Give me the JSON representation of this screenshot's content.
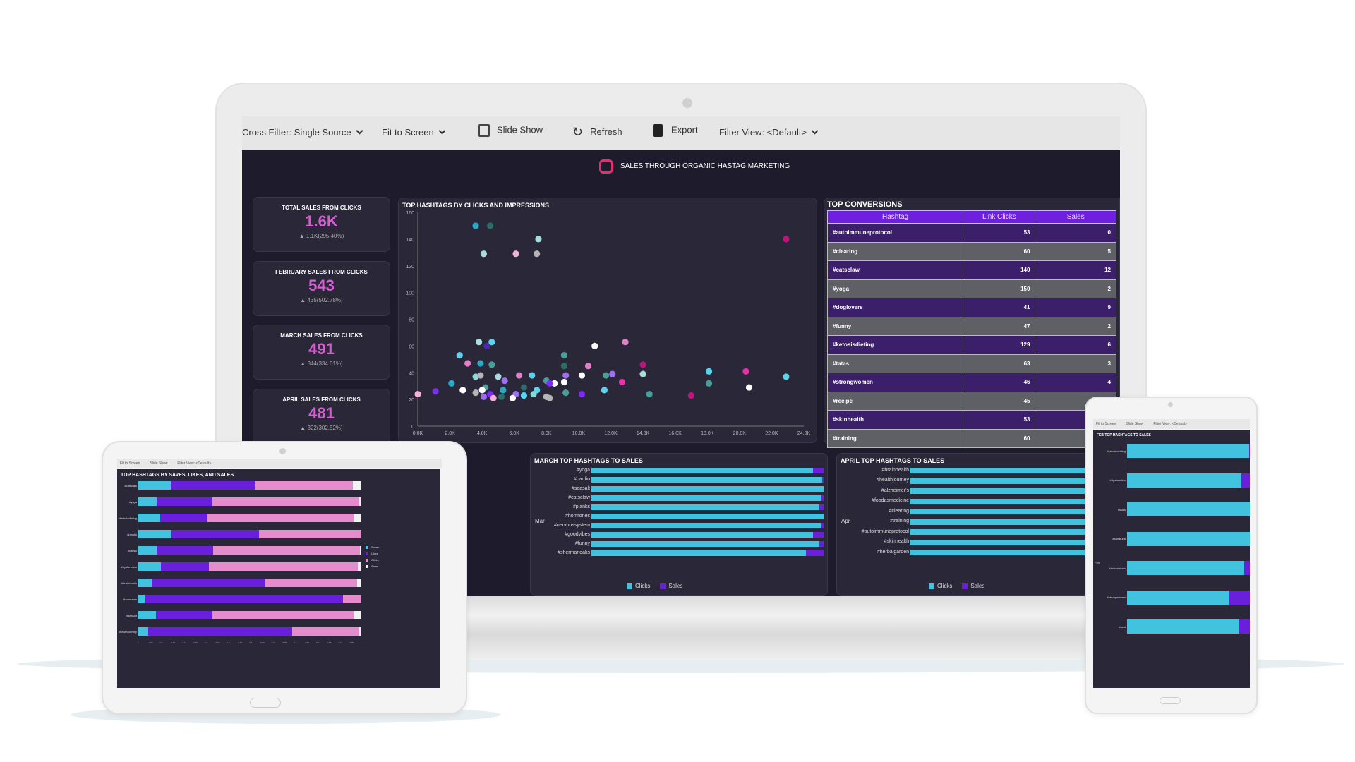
{
  "toolbar": {
    "cross_filter": "Cross Filter: Single Source",
    "fit": "Fit to Screen",
    "slideshow": "Slide Show",
    "refresh": "Refresh",
    "export": "Export",
    "filter_view": "Filter View: <Default>"
  },
  "dashboard": {
    "title": "SALES THROUGH ORGANIC HASTAG MARKETING"
  },
  "kpis": [
    {
      "title": "TOTAL SALES FROM CLICKS",
      "value": "1.6K",
      "delta": "1.1K(295.40%)"
    },
    {
      "title": "FEBRUARY SALES FROM CLICKS",
      "value": "543",
      "delta": "435(502.78%)"
    },
    {
      "title": "MARCH SALES FROM CLICKS",
      "value": "491",
      "delta": "344(334.01%)"
    },
    {
      "title": "APRIL SALES FROM CLICKS",
      "value": "481",
      "delta": "322(302.52%)"
    }
  ],
  "colors": {
    "clicks": "#41c3e0",
    "sales": "#6a1fdc",
    "saves": "#41c3e0",
    "likes": "#6a1fdc",
    "clicks_pink": "#e48ccc",
    "sales_white": "#f2f2f2",
    "kpi_value": "#d45fcf"
  },
  "chart_data": [
    {
      "type": "scatter",
      "title": "TOP HASHTAGS BY CLICKS AND IMPRESSIONS",
      "xlim": [
        0,
        24000
      ],
      "ylim": [
        0,
        160
      ],
      "xticks": [
        "0.0K",
        "2.0K",
        "4.0K",
        "6.0K",
        "8.0K",
        "10.0K",
        "12.0K",
        "14.0K",
        "16.0K",
        "18.0K",
        "20.0K",
        "22.0K",
        "24.0K"
      ],
      "yticks": [
        "0",
        "20",
        "40",
        "60",
        "80",
        "100",
        "120",
        "140",
        "160"
      ],
      "palette": [
        "#2aa8c4",
        "#2e6b6b",
        "#a8dede",
        "#c0137e",
        "#f3b1d9",
        "#b5b5b5",
        "#4a2ab0",
        "#ffffff",
        "#5ad4ee",
        "#4a9e9a",
        "#e27fc6",
        "#9b6ff0",
        "#7c2cf0",
        "#e034a5",
        "#88d7dc"
      ],
      "points": [
        [
          3600,
          150,
          0
        ],
        [
          4500,
          150,
          1
        ],
        [
          7500,
          140,
          2
        ],
        [
          22900,
          140,
          3
        ],
        [
          4100,
          129,
          2
        ],
        [
          6100,
          129,
          4
        ],
        [
          7400,
          129,
          5
        ],
        [
          3800,
          63,
          2
        ],
        [
          4600,
          63,
          8
        ],
        [
          4300,
          60,
          6
        ],
        [
          11000,
          60,
          7
        ],
        [
          12900,
          63,
          10
        ],
        [
          2600,
          53,
          8
        ],
        [
          9100,
          53,
          9
        ],
        [
          3100,
          47,
          10
        ],
        [
          3900,
          47,
          0
        ],
        [
          4600,
          46,
          9
        ],
        [
          9100,
          45,
          1
        ],
        [
          10600,
          45,
          10
        ],
        [
          14000,
          46,
          3
        ],
        [
          18100,
          41,
          8
        ],
        [
          20400,
          41,
          13
        ],
        [
          22900,
          37,
          8
        ],
        [
          14000,
          39,
          2
        ],
        [
          12100,
          39,
          11
        ],
        [
          11700,
          38,
          9
        ],
        [
          10200,
          38,
          7
        ],
        [
          9200,
          38,
          11
        ],
        [
          7100,
          38,
          8
        ],
        [
          6300,
          38,
          10
        ],
        [
          5000,
          37,
          2
        ],
        [
          3600,
          37,
          14
        ],
        [
          3900,
          38,
          5
        ],
        [
          5400,
          34,
          11
        ],
        [
          8000,
          34,
          9
        ],
        [
          9100,
          33,
          7
        ],
        [
          8500,
          32,
          7
        ],
        [
          8200,
          32,
          12
        ],
        [
          12700,
          33,
          13
        ],
        [
          18100,
          32,
          9
        ],
        [
          2100,
          32,
          0
        ],
        [
          20600,
          29,
          7
        ],
        [
          6600,
          29,
          1
        ],
        [
          4200,
          29,
          9
        ],
        [
          5300,
          27,
          0
        ],
        [
          7400,
          27,
          8
        ],
        [
          11600,
          27,
          8
        ],
        [
          2800,
          27,
          7
        ],
        [
          4000,
          27,
          7
        ],
        [
          1100,
          26,
          12
        ],
        [
          3600,
          25,
          5
        ],
        [
          9200,
          25,
          9
        ],
        [
          14400,
          24,
          9
        ],
        [
          17000,
          23,
          3
        ],
        [
          10200,
          24,
          12
        ],
        [
          0,
          24,
          4
        ],
        [
          6100,
          24,
          11
        ],
        [
          4500,
          24,
          12
        ],
        [
          7200,
          24,
          14
        ],
        [
          6600,
          23,
          8
        ],
        [
          4100,
          22,
          11
        ],
        [
          8000,
          22,
          5
        ],
        [
          8200,
          21,
          5
        ],
        [
          5200,
          22,
          1
        ],
        [
          4700,
          21,
          4
        ],
        [
          5900,
          21,
          7
        ]
      ]
    },
    {
      "type": "table",
      "title": "TOP CONVERSIONS",
      "columns": [
        "Hashtag",
        "Link Clicks",
        "Sales"
      ],
      "rows": [
        [
          "#autoimmuneprotocol",
          "53",
          "0"
        ],
        [
          "#clearing",
          "60",
          "5"
        ],
        [
          "#catsclaw",
          "140",
          "12"
        ],
        [
          "#yoga",
          "150",
          "2"
        ],
        [
          "#doglovers",
          "41",
          "9"
        ],
        [
          "#funny",
          "47",
          "2"
        ],
        [
          "#ketosisdieting",
          "129",
          "6"
        ],
        [
          "#tatas",
          "63",
          "3"
        ],
        [
          "#strongwomen",
          "46",
          "4"
        ],
        [
          "#recipe",
          "45",
          ""
        ],
        [
          "#skinhealth",
          "53",
          ""
        ],
        [
          "#training",
          "60",
          ""
        ]
      ]
    },
    {
      "type": "bar",
      "stacked": "percent",
      "title": "MARCH TOP HASHTAGS TO SALES",
      "group": "Mar",
      "legend": [
        "Clicks",
        "Sales"
      ],
      "categories": [
        "#yoga",
        "#cardio",
        "#seasalt",
        "#catsclaw",
        "#planks",
        "#hormones",
        "#nervoussystem",
        "#goodvibes",
        "#funny",
        "#shermanoaks"
      ],
      "series": [
        {
          "name": "Clicks",
          "values": [
            95,
            99,
            100,
            98.5,
            98,
            100,
            98.5,
            95,
            98,
            92
          ]
        },
        {
          "name": "Sales",
          "values": [
            5,
            1,
            0,
            1.5,
            2,
            0,
            1.5,
            5,
            2,
            8
          ]
        }
      ]
    },
    {
      "type": "bar",
      "stacked": "percent",
      "title": "APRIL TOP HASHTAGS TO SALES",
      "group": "Apr",
      "legend": [
        "Clicks",
        "Sales"
      ],
      "categories": [
        "#brainhealth",
        "#healthjourney",
        "#alzheimer's",
        "#foodasmedicine",
        "#clearing",
        "#training",
        "#autoimmuneprotocol",
        "#skinhealth",
        "#herbalgarden"
      ],
      "series": [
        {
          "name": "Clicks",
          "values": [
            98,
            98,
            98,
            98,
            98,
            98,
            78,
            98,
            98
          ]
        },
        {
          "name": "Sales",
          "values": [
            2,
            2,
            2,
            2,
            2,
            2,
            22,
            2,
            2
          ]
        }
      ]
    },
    {
      "type": "bar",
      "stacked": "percent",
      "title": "FEB TOP HASHTAGS TO SALES",
      "group": "Feb",
      "categories": [
        "#ketosisdieting",
        "#dysfunction",
        "#tatas",
        "#alfnatural",
        "#antioxidants",
        "#strongwomen",
        "#acid"
      ],
      "series": [
        {
          "name": "Clicks",
          "values": [
            96,
            90,
            98,
            98,
            92,
            80,
            88
          ]
        },
        {
          "name": "Sales",
          "values": [
            4,
            10,
            2,
            2,
            8,
            20,
            12
          ]
        }
      ]
    },
    {
      "type": "bar",
      "stacked": "percent",
      "title": "TOP HASHTAGS BY SAVES, LIKES, AND SALES",
      "legend": [
        "Saves",
        "Likes",
        "Clicks",
        "Sales"
      ],
      "categories": [
        "#catsclaw",
        "#yoga",
        "#ketosisdieting",
        "#planks",
        "#cardio",
        "#dysfunction",
        "#brainhealth",
        "#hormones",
        "#seasalt",
        "#healthjourney"
      ],
      "series": [
        {
          "name": "Saves",
          "values": [
            14.4,
            8.3,
            9.7,
            14.9,
            8.3,
            10,
            6,
            2.7,
            8,
            4.4
          ]
        },
        {
          "name": "Likes",
          "values": [
            37.9,
            25,
            21.4,
            39.3,
            25.2,
            21.5,
            51,
            89,
            25.2,
            64.6
          ]
        },
        {
          "name": "Clicks",
          "values": [
            43.9,
            65.7,
            65.8,
            45.5,
            66,
            66.8,
            41.1,
            8.3,
            63.8,
            30
          ]
        },
        {
          "name": "Sales",
          "values": [
            3.8,
            1,
            3.1,
            0.3,
            0.5,
            1.7,
            1.9,
            0,
            3,
            1
          ]
        }
      ],
      "xticks": [
        "0",
        "0.05",
        "0.1",
        "0.15",
        "0.2",
        "0.25",
        "0.3",
        "0.35",
        "0.4",
        "0.45",
        "0.5",
        "0.55",
        "0.6",
        "0.65",
        "0.7",
        "0.75",
        "0.8",
        "0.85",
        "0.9",
        "0.95",
        "1"
      ]
    }
  ],
  "tablet": {
    "fit": "Fit to Screen",
    "slideshow": "Slide Show",
    "filter_view": "Filter View: <Default>"
  },
  "phone": {
    "fit": "Fit to Screen",
    "slideshow": "Slide Show",
    "filter_view": "Filter View: <Default>"
  }
}
